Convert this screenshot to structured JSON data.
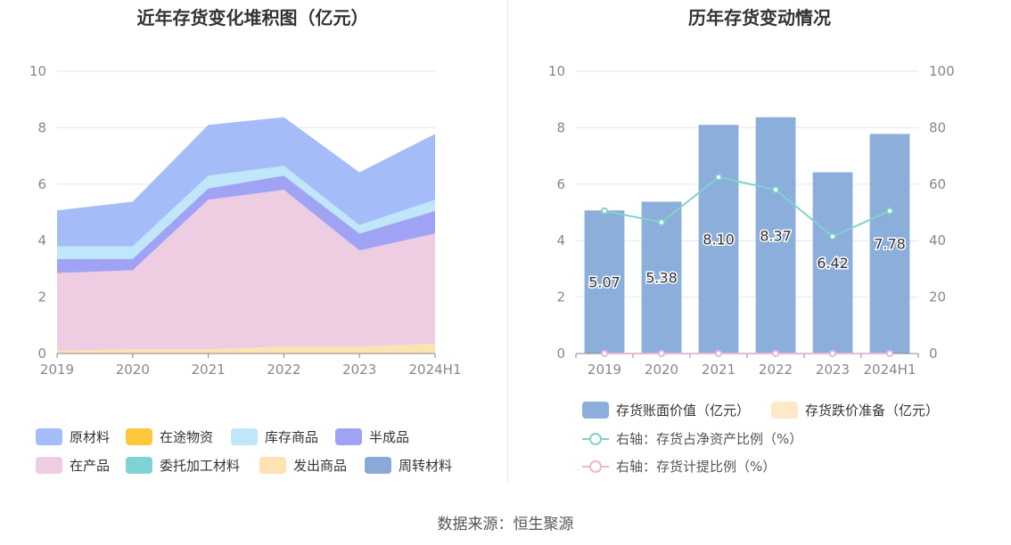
{
  "source": "数据来源：恒生聚源",
  "colors": {
    "原材料": "#a6bcf9",
    "在途物资": "#fdc73c",
    "库存商品": "#bfe6f9",
    "半成品": "#a0a3f4",
    "在产品": "#eecde3",
    "委托加工材料": "#7dd3d6",
    "发出商品": "#fde3b1",
    "周转材料": "#8ba9d8",
    "bar": "#8caedb",
    "writedown": "#fde8c7",
    "ratio_line": "#7fd3cc",
    "provision_line": "#eab7d6",
    "grid": "#e3e6f0",
    "axis_text": "#888888"
  },
  "chart_data": [
    {
      "type": "area",
      "title": "近年存货变化堆积图（亿元）",
      "stacked": true,
      "categories": [
        "2019",
        "2020",
        "2021",
        "2022",
        "2023",
        "2024H1"
      ],
      "ylim": [
        0,
        10
      ],
      "yticks": [
        "0",
        "2",
        "4",
        "6",
        "8",
        "10"
      ],
      "legend_position": "bottom",
      "legend": [
        {
          "name": "原材料",
          "color_key": "原材料"
        },
        {
          "name": "在途物资",
          "color_key": "在途物资"
        },
        {
          "name": "库存商品",
          "color_key": "库存商品"
        },
        {
          "name": "半成品",
          "color_key": "半成品"
        },
        {
          "name": "在产品",
          "color_key": "在产品"
        },
        {
          "name": "委托加工材料",
          "color_key": "委托加工材料"
        },
        {
          "name": "发出商品",
          "color_key": "发出商品"
        },
        {
          "name": "周转材料",
          "color_key": "周转材料"
        }
      ],
      "series": [
        {
          "name": "发出商品",
          "values": [
            0.1,
            0.15,
            0.15,
            0.25,
            0.25,
            0.35
          ]
        },
        {
          "name": "在产品",
          "values": [
            2.75,
            2.8,
            5.3,
            5.55,
            3.4,
            3.9
          ]
        },
        {
          "name": "半成品",
          "values": [
            0.5,
            0.4,
            0.4,
            0.5,
            0.6,
            0.8
          ]
        },
        {
          "name": "库存商品",
          "values": [
            0.45,
            0.45,
            0.45,
            0.35,
            0.3,
            0.4
          ]
        },
        {
          "name": "原材料",
          "values": [
            1.27,
            1.58,
            1.8,
            1.72,
            1.87,
            2.33
          ]
        }
      ]
    },
    {
      "type": "bar",
      "title": "历年存货变动情况",
      "categories": [
        "2019",
        "2020",
        "2021",
        "2022",
        "2023",
        "2024H1"
      ],
      "ylim": [
        0,
        10
      ],
      "yticks": [
        "0",
        "2",
        "4",
        "6",
        "8",
        "10"
      ],
      "y2lim": [
        0,
        100
      ],
      "y2ticks": [
        "0",
        "20",
        "40",
        "60",
        "80",
        "100"
      ],
      "legend_position": "bottom",
      "series": [
        {
          "name": "存货账面价值（亿元）",
          "kind": "bar",
          "axis": "left",
          "values": [
            5.07,
            5.38,
            8.1,
            8.37,
            6.42,
            7.78
          ],
          "labels": [
            "5.07",
            "5.38",
            "8.10",
            "8.37",
            "6.42",
            "7.78"
          ]
        },
        {
          "name": "存货跌价准备（亿元）",
          "kind": "bar",
          "axis": "left",
          "values": [
            0,
            0,
            0,
            0,
            0,
            0
          ]
        },
        {
          "name": "右轴：存货占净资产比例（%）",
          "kind": "line",
          "axis": "right",
          "values": [
            50.5,
            46.5,
            62.5,
            58,
            41.5,
            50.5
          ]
        },
        {
          "name": "右轴：存货计提比例（%）",
          "kind": "line",
          "axis": "right",
          "values": [
            0,
            0,
            0,
            0,
            0,
            0
          ]
        }
      ]
    }
  ]
}
